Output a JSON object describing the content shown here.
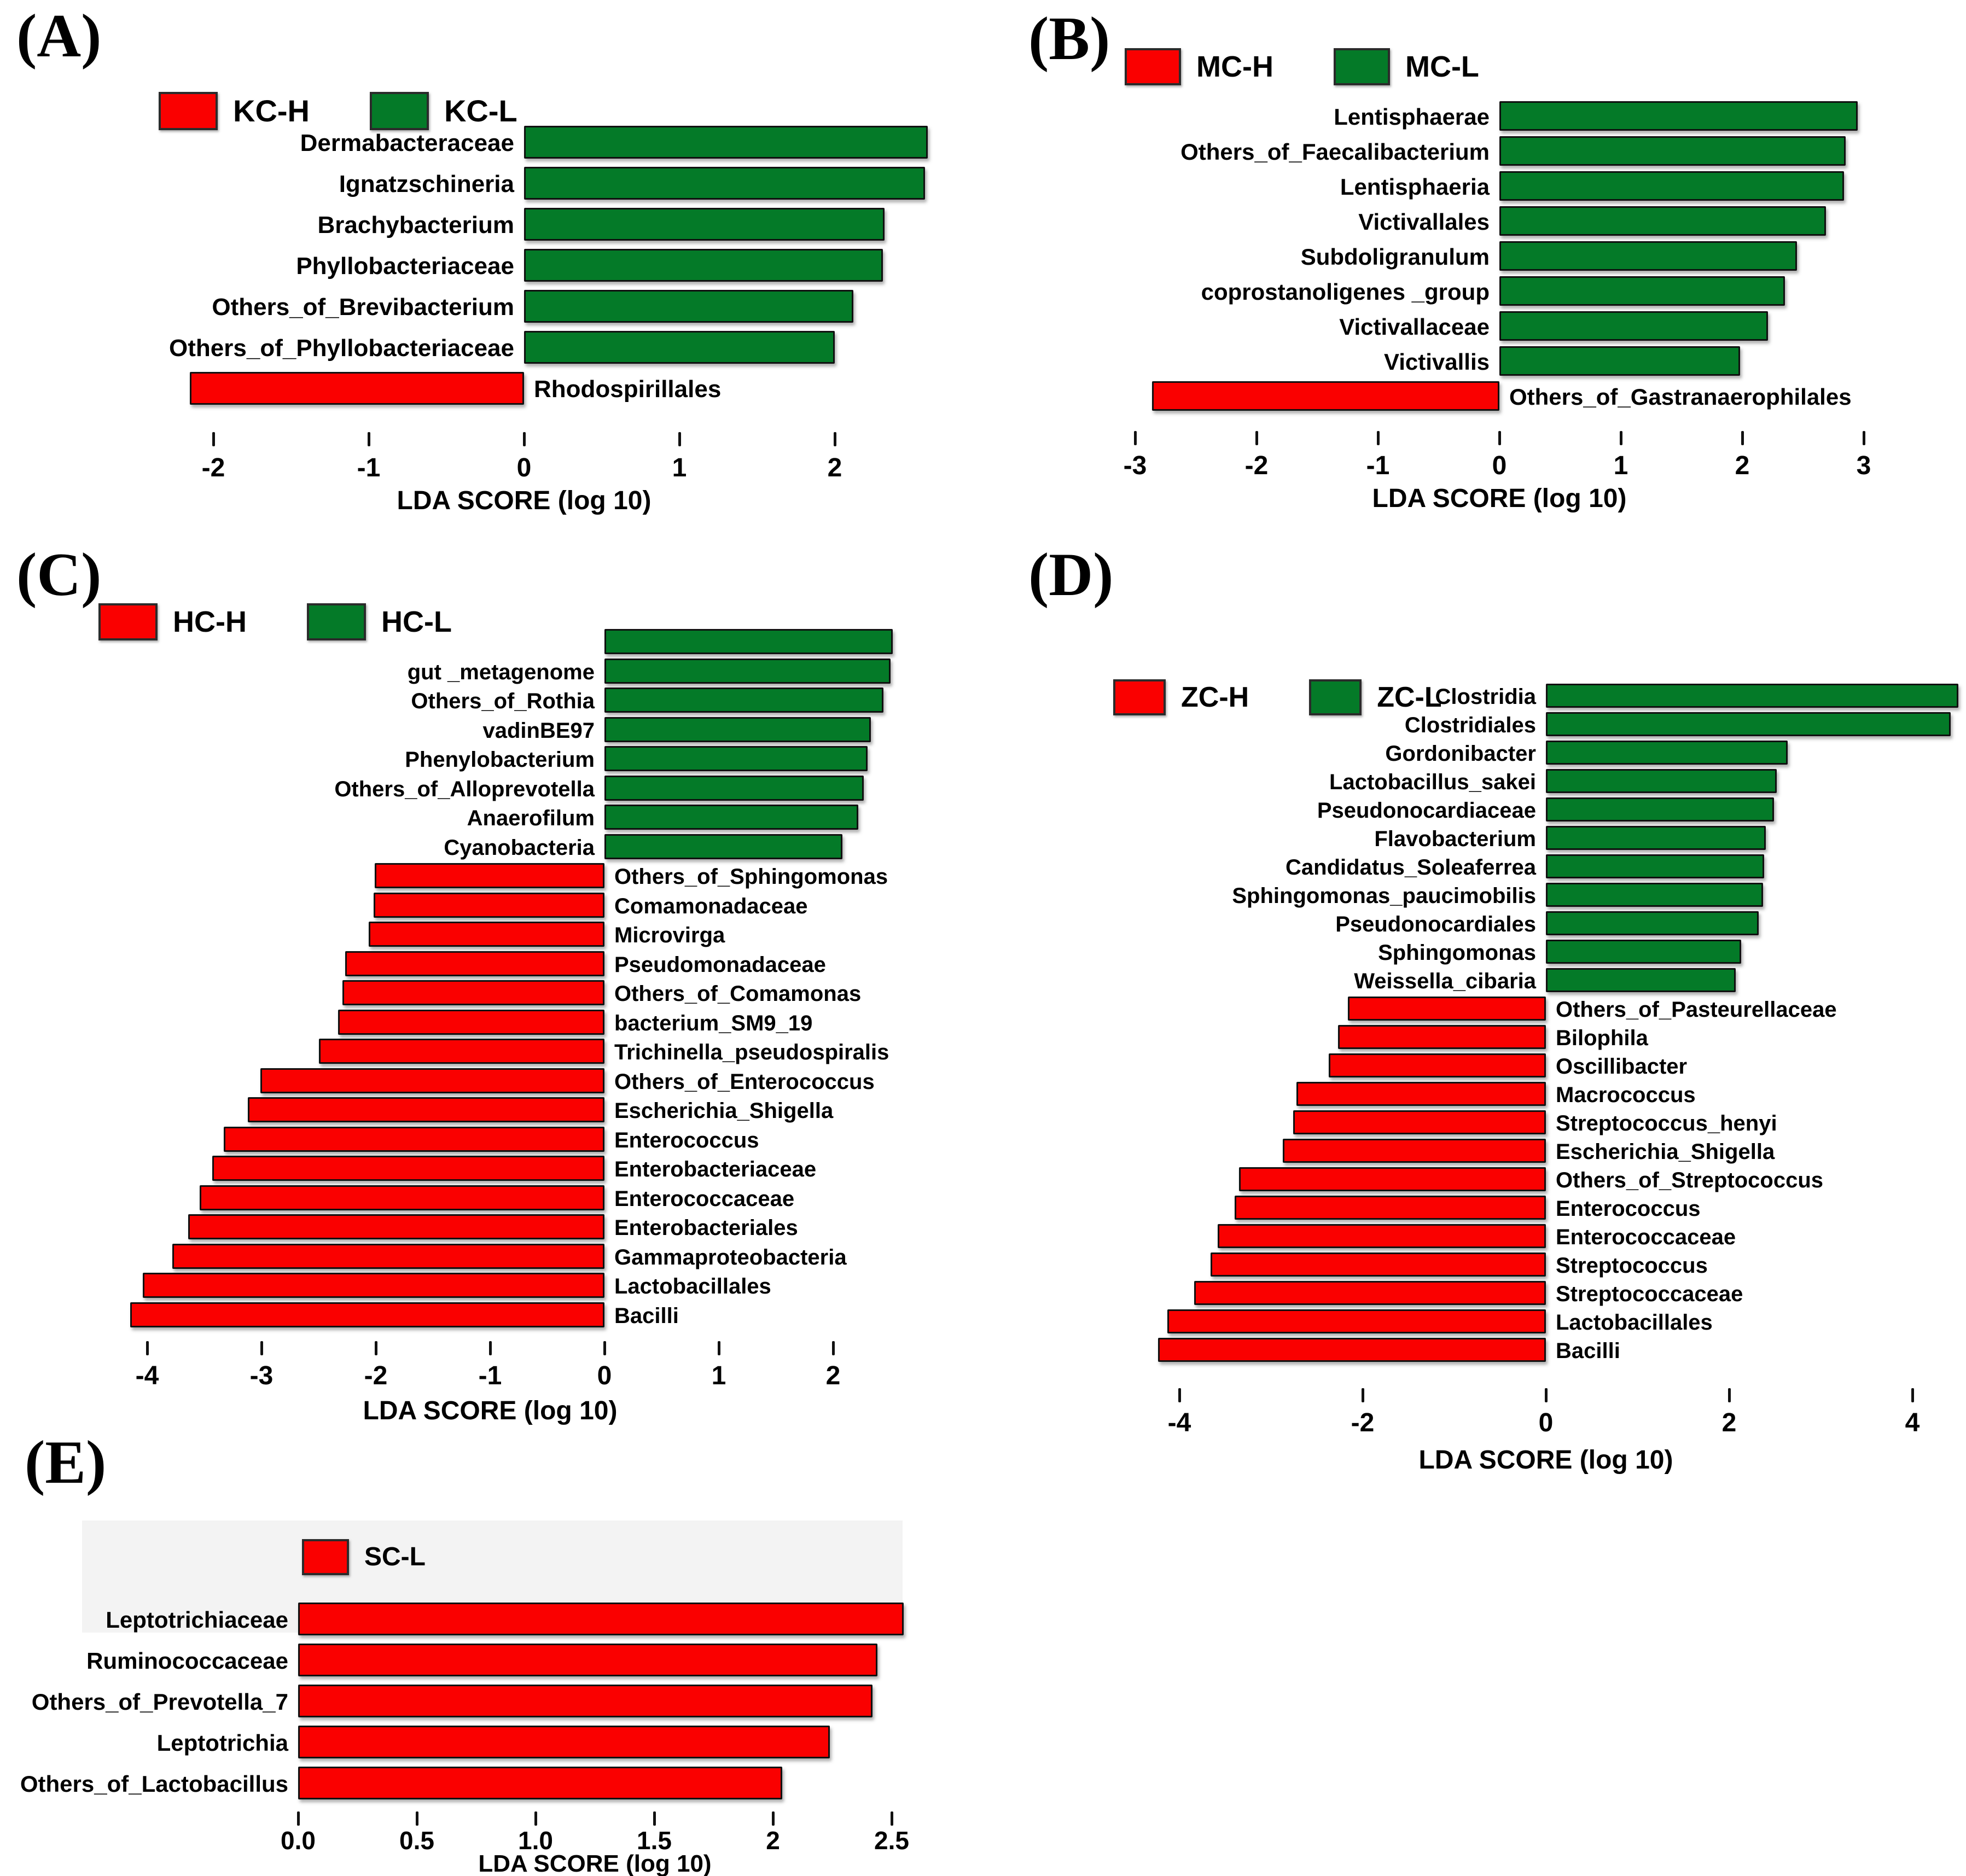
{
  "figure": {
    "background": "#ffffff",
    "series_colors": {
      "high_group": "#fa0000",
      "low_group": "#047a28"
    }
  },
  "chart_data": [
    {
      "id": "A",
      "panel_letter": "(A)",
      "type": "bar",
      "orientation": "horizontal",
      "xlabel": "LDA SCORE (log 10)",
      "xlim": [
        -2.45,
        2.85
      ],
      "xticks": [
        -2,
        -1,
        0,
        1,
        2
      ],
      "xtick_labels": [
        "-2",
        "-1",
        "0",
        "1",
        "2"
      ],
      "grid": false,
      "legend_position": "top",
      "legend": [
        {
          "name": "KC-H",
          "color": "#fa0000"
        },
        {
          "name": "KC-L",
          "color": "#047a28"
        }
      ],
      "bars": [
        {
          "category": "Dermabacteraceae",
          "value": 2.6,
          "series": "KC-L"
        },
        {
          "category": "Ignatzschineria",
          "value": 2.58,
          "series": "KC-L"
        },
        {
          "category": "Brachybacterium",
          "value": 2.32,
          "series": "KC-L"
        },
        {
          "category": "Phyllobacteriaceae",
          "value": 2.31,
          "series": "KC-L"
        },
        {
          "category": "Others_of_Brevibacterium",
          "value": 2.12,
          "series": "KC-L"
        },
        {
          "category": "Others_of_Phyllobacteriaceae",
          "value": 2.0,
          "series": "KC-L"
        },
        {
          "category": "Rhodospirillales",
          "value": -2.15,
          "series": "KC-H"
        }
      ]
    },
    {
      "id": "B",
      "panel_letter": "(B)",
      "type": "bar",
      "orientation": "horizontal",
      "xlabel": "LDA SCORE (log 10)",
      "xlim": [
        -3.35,
        3.35
      ],
      "xticks": [
        -3,
        -2,
        -1,
        0,
        1,
        2,
        3
      ],
      "xtick_labels": [
        "-3",
        "-2",
        "-1",
        "0",
        "1",
        "2",
        "3"
      ],
      "grid": false,
      "legend_position": "top",
      "legend": [
        {
          "name": "MC-H",
          "color": "#fa0000"
        },
        {
          "name": "MC-L",
          "color": "#047a28"
        }
      ],
      "bars": [
        {
          "category": "Lentisphaerae",
          "value": 2.95,
          "series": "MC-L"
        },
        {
          "category": "Others_of_Faecalibacterium",
          "value": 2.85,
          "series": "MC-L"
        },
        {
          "category": "Lentisphaeria",
          "value": 2.84,
          "series": "MC-L"
        },
        {
          "category": "Victivallales",
          "value": 2.69,
          "series": "MC-L"
        },
        {
          "category": "Subdoligranulum",
          "value": 2.45,
          "series": "MC-L"
        },
        {
          "category": "coprostanoligenes _group",
          "value": 2.35,
          "series": "MC-L"
        },
        {
          "category": "Victivallaceae",
          "value": 2.21,
          "series": "MC-L"
        },
        {
          "category": "Victivallis",
          "value": 1.98,
          "series": "MC-L"
        },
        {
          "category": "Others_of_Gastranaerophilales",
          "value": -2.86,
          "series": "MC-H"
        }
      ]
    },
    {
      "id": "C",
      "panel_letter": "(C)",
      "type": "bar",
      "orientation": "horizontal",
      "xlabel": "LDA SCORE (log 10)",
      "xlim": [
        -4.45,
        2.75
      ],
      "xticks": [
        -4,
        -3,
        -2,
        -1,
        0,
        1,
        2
      ],
      "xtick_labels": [
        "-4",
        "-3",
        "-2",
        "-1",
        "0",
        "1",
        "2"
      ],
      "grid": false,
      "legend_position": "top",
      "legend": [
        {
          "name": "HC-H",
          "color": "#fa0000"
        },
        {
          "name": "HC-L",
          "color": "#047a28"
        }
      ],
      "bars": [
        {
          "category": "",
          "value": 2.52,
          "series": "HC-L"
        },
        {
          "category": "gut _metagenome",
          "value": 2.5,
          "series": "HC-L"
        },
        {
          "category": "Others_of_Rothia",
          "value": 2.44,
          "series": "HC-L"
        },
        {
          "category": "vadinBE97",
          "value": 2.33,
          "series": "HC-L"
        },
        {
          "category": "Phenylobacterium",
          "value": 2.3,
          "series": "HC-L"
        },
        {
          "category": "Others_of_Alloprevotella",
          "value": 2.27,
          "series": "HC-L"
        },
        {
          "category": "Anaerofilum",
          "value": 2.22,
          "series": "HC-L"
        },
        {
          "category": "Cyanobacteria",
          "value": 2.08,
          "series": "HC-L"
        },
        {
          "category": "Others_of_Sphingomonas",
          "value": -2.01,
          "series": "HC-H"
        },
        {
          "category": "Comamonadaceae",
          "value": -2.02,
          "series": "HC-H"
        },
        {
          "category": "Microvirga",
          "value": -2.06,
          "series": "HC-H"
        },
        {
          "category": "Pseudomonadaceae",
          "value": -2.27,
          "series": "HC-H"
        },
        {
          "category": "Others_of_Comamonas",
          "value": -2.29,
          "series": "HC-H"
        },
        {
          "category": "bacterium_SM9_19",
          "value": -2.33,
          "series": "HC-H"
        },
        {
          "category": "Trichinella_pseudospiralis",
          "value": -2.5,
          "series": "HC-H"
        },
        {
          "category": "Others_of_Enterococcus",
          "value": -3.01,
          "series": "HC-H"
        },
        {
          "category": "Escherichia_Shigella",
          "value": -3.12,
          "series": "HC-H"
        },
        {
          "category": "Enterococcus",
          "value": -3.33,
          "series": "HC-H"
        },
        {
          "category": "Enterobacteriaceae",
          "value": -3.43,
          "series": "HC-H"
        },
        {
          "category": "Enterococcaceae",
          "value": -3.54,
          "series": "HC-H"
        },
        {
          "category": "Enterobacteriales",
          "value": -3.64,
          "series": "HC-H"
        },
        {
          "category": "Gammaproteobacteria",
          "value": -3.78,
          "series": "HC-H"
        },
        {
          "category": "Lactobacillales",
          "value": -4.04,
          "series": "HC-H"
        },
        {
          "category": "Bacilli",
          "value": -4.15,
          "series": "HC-H"
        }
      ]
    },
    {
      "id": "D",
      "panel_letter": "(D)",
      "type": "bar",
      "orientation": "horizontal",
      "xlabel": "LDA SCORE (log 10)",
      "xlim": [
        -4.6,
        4.75
      ],
      "xticks": [
        -4,
        -2,
        0,
        2,
        4
      ],
      "xtick_labels": [
        "-4",
        "-2",
        "0",
        "2",
        "4"
      ],
      "grid": false,
      "legend_position": "top",
      "legend": [
        {
          "name": "ZC-H",
          "color": "#fa0000"
        },
        {
          "name": "ZC-L",
          "color": "#047a28"
        }
      ],
      "bars": [
        {
          "category": "Clostridia",
          "value": 4.5,
          "series": "ZC-L"
        },
        {
          "category": "Clostridiales",
          "value": 4.42,
          "series": "ZC-L"
        },
        {
          "category": "Gordonibacter",
          "value": 2.64,
          "series": "ZC-L"
        },
        {
          "category": "Lactobacillus_sakei",
          "value": 2.52,
          "series": "ZC-L"
        },
        {
          "category": "Pseudonocardiaceae",
          "value": 2.49,
          "series": "ZC-L"
        },
        {
          "category": "Flavobacterium",
          "value": 2.4,
          "series": "ZC-L"
        },
        {
          "category": "Candidatus_Soleaferrea",
          "value": 2.38,
          "series": "ZC-L"
        },
        {
          "category": "Sphingomonas_paucimobilis",
          "value": 2.37,
          "series": "ZC-L"
        },
        {
          "category": "Pseudonocardiales",
          "value": 2.32,
          "series": "ZC-L"
        },
        {
          "category": "Sphingomonas",
          "value": 2.13,
          "series": "ZC-L"
        },
        {
          "category": "Weissella_cibaria",
          "value": 2.07,
          "series": "ZC-L"
        },
        {
          "category": "Others_of_Pasteurellaceae",
          "value": -2.16,
          "series": "ZC-H"
        },
        {
          "category": "Bilophila",
          "value": -2.27,
          "series": "ZC-H"
        },
        {
          "category": "Oscillibacter",
          "value": -2.37,
          "series": "ZC-H"
        },
        {
          "category": "Macrococcus",
          "value": -2.72,
          "series": "ZC-H"
        },
        {
          "category": "Streptococcus_henyi",
          "value": -2.76,
          "series": "ZC-H"
        },
        {
          "category": "Escherichia_Shigella",
          "value": -2.87,
          "series": "ZC-H"
        },
        {
          "category": "Others_of_Streptococcus",
          "value": -3.35,
          "series": "ZC-H"
        },
        {
          "category": "Enterococcus",
          "value": -3.4,
          "series": "ZC-H"
        },
        {
          "category": "Enterococcaceae",
          "value": -3.58,
          "series": "ZC-H"
        },
        {
          "category": "Streptococcus",
          "value": -3.66,
          "series": "ZC-H"
        },
        {
          "category": "Streptococcaceae",
          "value": -3.84,
          "series": "ZC-H"
        },
        {
          "category": "Lactobacillales",
          "value": -4.13,
          "series": "ZC-H"
        },
        {
          "category": "Bacilli",
          "value": -4.23,
          "series": "ZC-H"
        }
      ]
    },
    {
      "id": "E",
      "panel_letter": "(E)",
      "type": "bar",
      "orientation": "horizontal",
      "xlabel": "LDA SCORE (log 10)",
      "xlim": [
        0,
        2.85
      ],
      "xticks": [
        0,
        0.5,
        1,
        1.5,
        2,
        2.5
      ],
      "xtick_labels": [
        "0.0",
        "0.5",
        "1.0",
        "1.5",
        "2",
        "2.5"
      ],
      "grid": false,
      "legend_position": "top",
      "legend": [
        {
          "name": "SC-L",
          "color": "#fa0000"
        }
      ],
      "bars": [
        {
          "category": "Leptotrichiaceae",
          "value": 2.55,
          "series": "SC-L"
        },
        {
          "category": "Ruminococcaceae",
          "value": 2.44,
          "series": "SC-L"
        },
        {
          "category": "Others_of_Prevotella_7",
          "value": 2.42,
          "series": "SC-L"
        },
        {
          "category": "Leptotrichia",
          "value": 2.24,
          "series": "SC-L"
        },
        {
          "category": "Others_of_Lactobacillus",
          "value": 2.04,
          "series": "SC-L"
        }
      ]
    }
  ]
}
